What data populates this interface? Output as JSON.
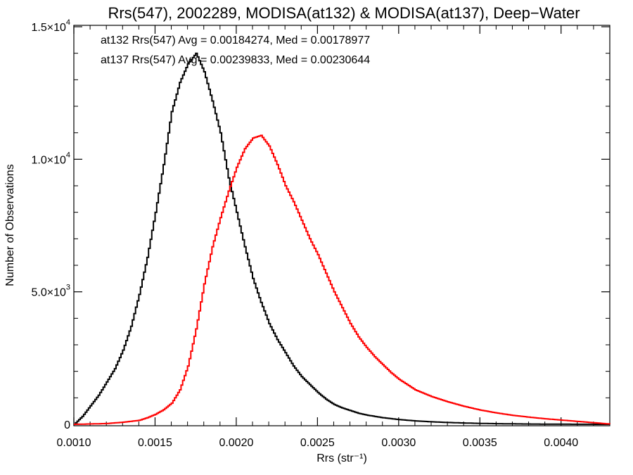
{
  "chart_data": {
    "type": "line",
    "title": "Rrs(547), 2002289, MODISA(at132) & MODISA(at137), Deep−Water",
    "xlabel": "Rrs (str⁻¹)",
    "ylabel": "Number of Observations",
    "xlim": [
      0.001,
      0.0043
    ],
    "ylim": [
      0,
      15000
    ],
    "x_ticks": [
      0.001,
      0.0015,
      0.002,
      0.0025,
      0.003,
      0.0035,
      0.004
    ],
    "x_tick_labels": [
      "0.0010",
      "0.0015",
      "0.0020",
      "0.0025",
      "0.0030",
      "0.0035",
      "0.0040"
    ],
    "y_ticks": [
      0,
      5000,
      10000,
      15000
    ],
    "y_tick_labels": [
      {
        "mantissa": "0",
        "exponent": ""
      },
      {
        "mantissa": "5.0×10",
        "exponent": "3"
      },
      {
        "mantissa": "1.0×10",
        "exponent": "4"
      },
      {
        "mantissa": "1.5×10",
        "exponent": "4"
      }
    ],
    "annotations": [
      {
        "text": "at132 Rrs(547) Avg = 0.00184274, Med = 0.00178977",
        "color": "#000000"
      },
      {
        "text": "at137 Rrs(547) Avg = 0.00239833, Med = 0.00230644",
        "color": "#ff0000"
      }
    ],
    "series": [
      {
        "color": "#000000",
        "x": [
          0.001,
          0.00105,
          0.0011,
          0.00115,
          0.0012,
          0.00125,
          0.0013,
          0.00135,
          0.0014,
          0.00145,
          0.0015,
          0.00155,
          0.0016,
          0.00165,
          0.0017,
          0.00175,
          0.0018,
          0.00185,
          0.0019,
          0.00195,
          0.002,
          0.00205,
          0.0021,
          0.00215,
          0.0022,
          0.00225,
          0.0023,
          0.00235,
          0.0024,
          0.00245,
          0.0025,
          0.00255,
          0.0026,
          0.00265,
          0.0027,
          0.00275,
          0.0028,
          0.00285,
          0.0029,
          0.003,
          0.0031,
          0.0032,
          0.0033,
          0.0034,
          0.0035,
          0.0036,
          0.0037,
          0.0038,
          0.0039,
          0.004,
          0.00415,
          0.0043
        ],
        "y": [
          0,
          300,
          700,
          1100,
          1600,
          2100,
          2800,
          3700,
          4900,
          6300,
          8000,
          9800,
          11800,
          12900,
          13600,
          14000,
          13300,
          12200,
          11000,
          9300,
          8000,
          6700,
          5500,
          4600,
          3800,
          3200,
          2700,
          2200,
          1800,
          1500,
          1200,
          950,
          750,
          620,
          520,
          420,
          350,
          300,
          250,
          180,
          130,
          95,
          70,
          50,
          35,
          25,
          18,
          12,
          8,
          5,
          2,
          0
        ]
      },
      {
        "color": "#ff0000",
        "x": [
          0.001,
          0.0012,
          0.0013,
          0.0014,
          0.00145,
          0.0015,
          0.00155,
          0.0016,
          0.00165,
          0.0017,
          0.00175,
          0.0018,
          0.00185,
          0.0019,
          0.00195,
          0.002,
          0.00205,
          0.0021,
          0.00215,
          0.0022,
          0.00225,
          0.0023,
          0.00235,
          0.0024,
          0.00245,
          0.0025,
          0.00255,
          0.0026,
          0.00265,
          0.0027,
          0.00275,
          0.0028,
          0.00285,
          0.0029,
          0.00295,
          0.003,
          0.0031,
          0.0032,
          0.0033,
          0.0034,
          0.0035,
          0.0036,
          0.0037,
          0.0038,
          0.0039,
          0.004,
          0.0041,
          0.0042,
          0.0043
        ],
        "y": [
          0,
          30,
          80,
          150,
          250,
          380,
          550,
          800,
          1300,
          2200,
          3600,
          5300,
          6700,
          7800,
          8800,
          9700,
          10400,
          10800,
          10900,
          10500,
          9800,
          9000,
          8400,
          7700,
          7000,
          6400,
          5700,
          5000,
          4400,
          3800,
          3300,
          2900,
          2550,
          2250,
          1950,
          1700,
          1300,
          1050,
          850,
          680,
          540,
          430,
          340,
          270,
          210,
          160,
          110,
          60,
          10
        ]
      }
    ]
  }
}
